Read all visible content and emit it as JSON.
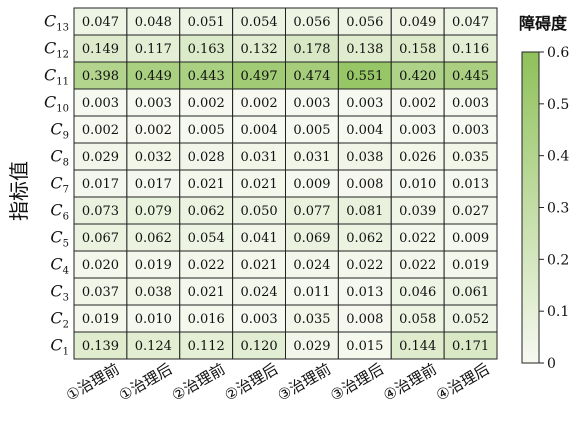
{
  "chart_data": {
    "type": "heatmap",
    "ylabel": "指标值",
    "colorbar": {
      "label": "障碍度",
      "min": 0,
      "max": 0.6,
      "ticks": [
        "0",
        "0.1",
        "0.2",
        "0.3",
        "0.4",
        "0.5",
        "0.6"
      ]
    },
    "colormap": {
      "low": "#f7f9f1",
      "high": "#8fc15a"
    },
    "columns": [
      "①治理前",
      "①治理后",
      "②治理前",
      "②治理后",
      "③治理前",
      "③治理后",
      "④治理前",
      "④治理后"
    ],
    "rows": [
      {
        "name": "C",
        "sub": "13",
        "values": [
          0.047,
          0.048,
          0.051,
          0.054,
          0.056,
          0.056,
          0.049,
          0.047
        ]
      },
      {
        "name": "C",
        "sub": "12",
        "values": [
          0.149,
          0.117,
          0.163,
          0.132,
          0.178,
          0.138,
          0.158,
          0.116
        ]
      },
      {
        "name": "C",
        "sub": "11",
        "values": [
          0.398,
          0.449,
          0.443,
          0.497,
          0.474,
          0.551,
          0.42,
          0.445
        ]
      },
      {
        "name": "C",
        "sub": "10",
        "values": [
          0.003,
          0.003,
          0.002,
          0.002,
          0.003,
          0.003,
          0.002,
          0.003
        ]
      },
      {
        "name": "C",
        "sub": "9",
        "values": [
          0.002,
          0.002,
          0.005,
          0.004,
          0.005,
          0.004,
          0.003,
          0.003
        ]
      },
      {
        "name": "C",
        "sub": "8",
        "values": [
          0.029,
          0.032,
          0.028,
          0.031,
          0.031,
          0.038,
          0.026,
          0.035
        ]
      },
      {
        "name": "C",
        "sub": "7",
        "values": [
          0.017,
          0.017,
          0.021,
          0.021,
          0.009,
          0.008,
          0.01,
          0.013
        ]
      },
      {
        "name": "C",
        "sub": "6",
        "values": [
          0.073,
          0.079,
          0.062,
          0.05,
          0.077,
          0.081,
          0.039,
          0.027
        ]
      },
      {
        "name": "C",
        "sub": "5",
        "values": [
          0.067,
          0.062,
          0.054,
          0.041,
          0.069,
          0.062,
          0.022,
          0.009
        ]
      },
      {
        "name": "C",
        "sub": "4",
        "values": [
          0.02,
          0.019,
          0.022,
          0.021,
          0.024,
          0.022,
          0.022,
          0.019
        ]
      },
      {
        "name": "C",
        "sub": "3",
        "values": [
          0.037,
          0.038,
          0.021,
          0.024,
          0.011,
          0.013,
          0.046,
          0.061
        ]
      },
      {
        "name": "C",
        "sub": "2",
        "values": [
          0.019,
          0.01,
          0.016,
          0.003,
          0.035,
          0.008,
          0.058,
          0.052
        ]
      },
      {
        "name": "C",
        "sub": "1",
        "values": [
          0.139,
          0.124,
          0.112,
          0.12,
          0.029,
          0.015,
          0.144,
          0.171
        ]
      }
    ]
  }
}
